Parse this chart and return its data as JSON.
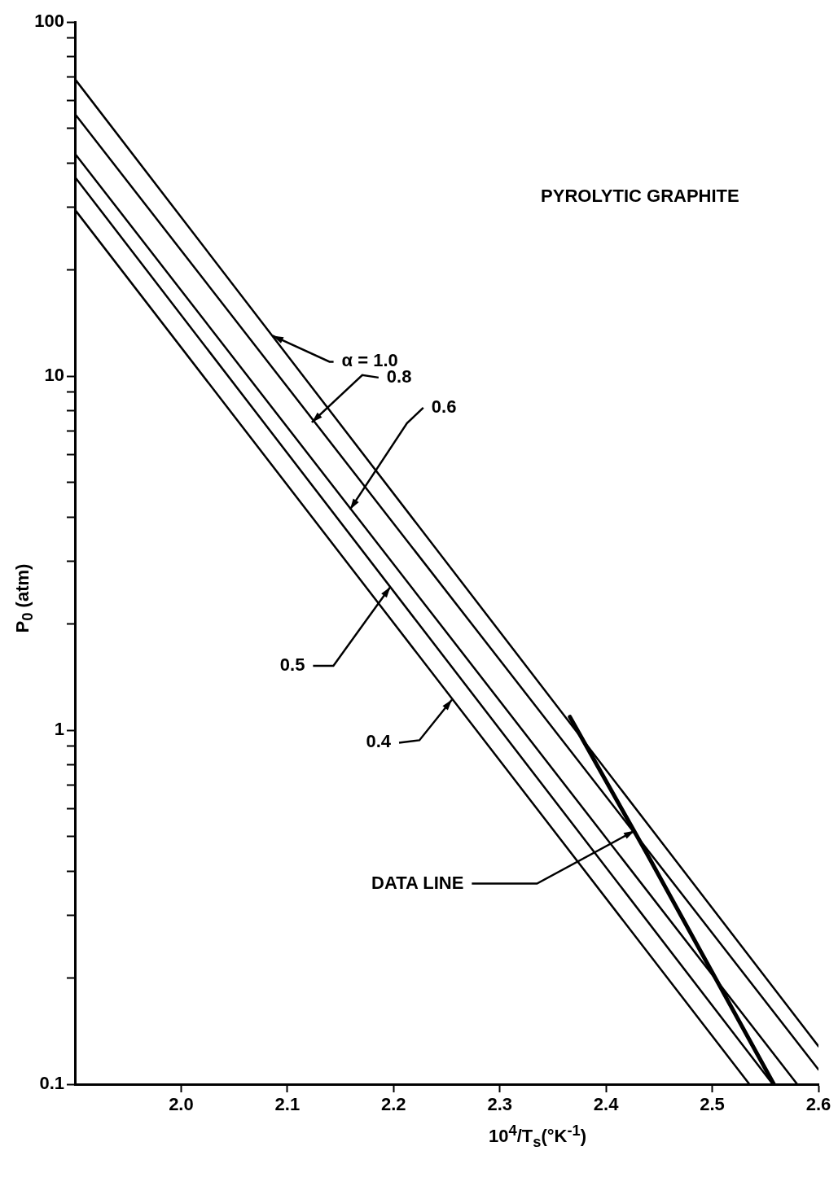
{
  "chart_data": {
    "type": "line",
    "xlabel": "10$^{4}$/T$_{s}$(°K$^{-1}$)",
    "ylabel": "P$_{0}$ (atm)",
    "log": "y",
    "grid": false,
    "legend": false,
    "marker": "none",
    "line_style": "solid",
    "xlim": [
      1.9,
      2.6
    ],
    "xticks": [
      {
        "value": 2,
        "label": "2.0"
      },
      2.1,
      2.2,
      2.3,
      2.4,
      2.5,
      2.6
    ],
    "ylim": [
      0.1,
      100
    ],
    "yticks": [
      0.1,
      {
        "value": 0.2,
        "label": null
      },
      {
        "value": 0.3,
        "label": null
      },
      {
        "value": 0.4,
        "label": null
      },
      {
        "value": 0.5,
        "label": null
      },
      {
        "value": 0.6,
        "label": null
      },
      {
        "value": 0.7,
        "label": null
      },
      {
        "value": 0.8,
        "label": null
      },
      {
        "value": 0.9,
        "label": null
      },
      1,
      {
        "value": 2,
        "label": null
      },
      {
        "value": 3,
        "label": null
      },
      {
        "value": 4,
        "label": null
      },
      {
        "value": 5,
        "label": null
      },
      {
        "value": 6,
        "label": null
      },
      {
        "value": 7,
        "label": null
      },
      {
        "value": 8,
        "label": null
      },
      {
        "value": 9,
        "label": null
      },
      10,
      {
        "value": 20,
        "label": null
      },
      {
        "value": 30,
        "label": null
      },
      {
        "value": 40,
        "label": null
      },
      {
        "value": 50,
        "label": null
      },
      {
        "value": 60,
        "label": null
      },
      {
        "value": 70,
        "label": null
      },
      {
        "value": 80,
        "label": null
      },
      {
        "value": 90,
        "label": null
      },
      100
    ],
    "series": [
      {
        "color": "#000000",
        "x": [
          1.9,
          2.6
        ],
        "values": [
          69,
          0.128
        ]
      },
      {
        "color": "#000000",
        "x": [
          1.9,
          2.6
        ],
        "values": [
          55,
          0.11
        ]
      },
      {
        "color": "#000000",
        "x": [
          1.9,
          2.58
        ],
        "values": [
          42.5,
          0.1
        ]
      },
      {
        "color": "#000000",
        "x": [
          1.9,
          2.557
        ],
        "values": [
          36.5,
          0.1
        ]
      },
      {
        "color": "#000000",
        "x": [
          1.9,
          2.535
        ],
        "values": [
          29.5,
          0.1
        ]
      },
      {
        "color": "#000000",
        "x": [
          2.366,
          2.439,
          2.558
        ],
        "values": [
          1.09,
          0.445,
          0.1
        ]
      }
    ],
    "annotations": [
      "PYROLYTIC GRAPHITE",
      {
        "text": "α = 1.0",
        "x": 2.086,
        "y": 13
      },
      {
        "text": "0.8",
        "x": 2.123,
        "y": 7.4
      },
      {
        "text": "0.6",
        "x": 2.159,
        "y": 4.2
      },
      {
        "text": "0.5",
        "x": 2.197,
        "y": 2.54
      },
      {
        "text": "0.4",
        "x": 2.255,
        "y": 1.22
      },
      {
        "text": "DATA LINE",
        "x": 2.427,
        "y": 0.52
      }
    ]
  }
}
